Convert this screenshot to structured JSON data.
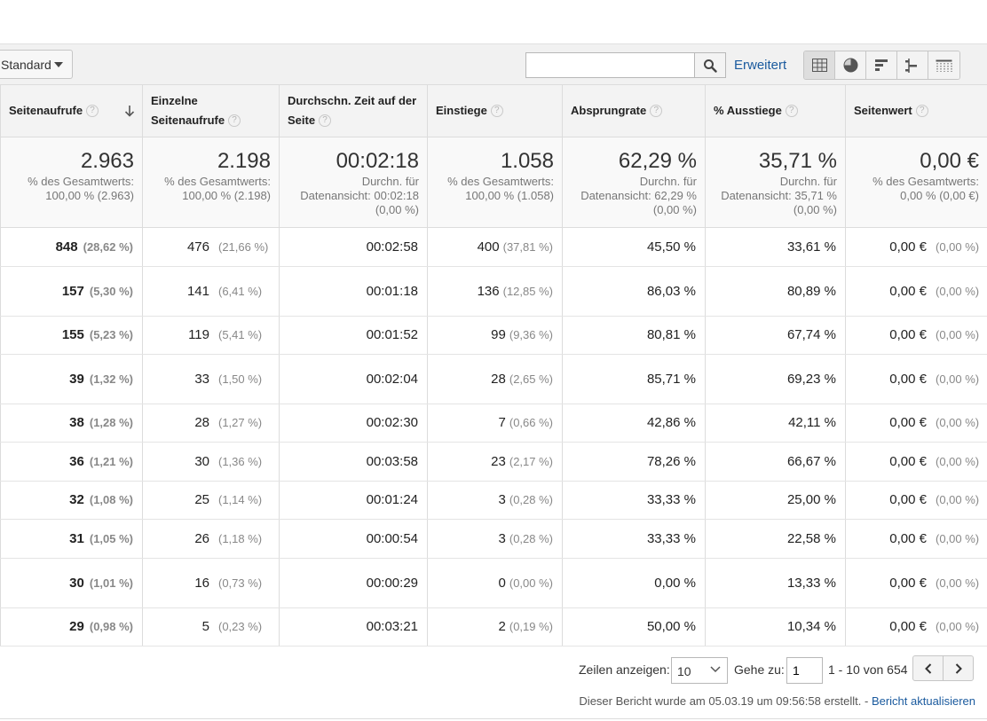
{
  "toolbar": {
    "view_select": "Standard",
    "search_value": "",
    "advanced_label": "Erweitert",
    "viz_icons": [
      "table-icon",
      "pie-chart-icon",
      "performance-bar-icon",
      "comparison-icon",
      "pivot-icon"
    ]
  },
  "columns": [
    {
      "label": "Seitenaufrufe",
      "help": "?"
    },
    {
      "label": "Einzelne Seitenaufrufe",
      "help": "?"
    },
    {
      "label": "Durchschn. Zeit auf der Seite",
      "help": "?"
    },
    {
      "label": "Einstiege",
      "help": "?"
    },
    {
      "label": "Absprungrate",
      "help": "?"
    },
    {
      "label": "% Ausstiege",
      "help": "?"
    },
    {
      "label": "Seitenwert",
      "help": "?"
    }
  ],
  "summary": [
    {
      "value": "2.963",
      "sub1": "% des Gesamtwerts:",
      "sub2": "100,00 % (2.963)",
      "sub3": ""
    },
    {
      "value": "2.198",
      "sub1": "% des Gesamtwerts:",
      "sub2": "100,00 % (2.198)",
      "sub3": ""
    },
    {
      "value": "00:02:18",
      "sub1": "Durchn. für",
      "sub2": "Datenansicht: 00:02:18",
      "sub3": "(0,00 %)"
    },
    {
      "value": "1.058",
      "sub1": "% des Gesamtwerts:",
      "sub2": "100,00 % (1.058)",
      "sub3": ""
    },
    {
      "value": "62,29 %",
      "sub1": "Durchn. für",
      "sub2": "Datenansicht: 62,29 %",
      "sub3": "(0,00 %)"
    },
    {
      "value": "35,71 %",
      "sub1": "Durchn. für",
      "sub2": "Datenansicht: 35,71 %",
      "sub3": "(0,00 %)"
    },
    {
      "value": "0,00 €",
      "sub1": "% des Gesamtwerts:",
      "sub2": "0,00 % (0,00 €)",
      "sub3": ""
    }
  ],
  "rows": [
    {
      "pv": "848",
      "pv_pct": "(28,62 %)",
      "upv": "476",
      "upv_pct": "(21,66 %)",
      "time": "00:02:58",
      "ent": "400",
      "ent_pct": "(37,81 %)",
      "bounce": "45,50 %",
      "exit": "33,61 %",
      "value": "0,00 €",
      "value_pct": "(0,00 %)"
    },
    {
      "pv": "157",
      "pv_pct": "(5,30 %)",
      "upv": "141",
      "upv_pct": "(6,41 %)",
      "time": "00:01:18",
      "ent": "136",
      "ent_pct": "(12,85 %)",
      "bounce": "86,03 %",
      "exit": "80,89 %",
      "value": "0,00 €",
      "value_pct": "(0,00 %)"
    },
    {
      "pv": "155",
      "pv_pct": "(5,23 %)",
      "upv": "119",
      "upv_pct": "(5,41 %)",
      "time": "00:01:52",
      "ent": "99",
      "ent_pct": "(9,36 %)",
      "bounce": "80,81 %",
      "exit": "67,74 %",
      "value": "0,00 €",
      "value_pct": "(0,00 %)"
    },
    {
      "pv": "39",
      "pv_pct": "(1,32 %)",
      "upv": "33",
      "upv_pct": "(1,50 %)",
      "time": "00:02:04",
      "ent": "28",
      "ent_pct": "(2,65 %)",
      "bounce": "85,71 %",
      "exit": "69,23 %",
      "value": "0,00 €",
      "value_pct": "(0,00 %)"
    },
    {
      "pv": "38",
      "pv_pct": "(1,28 %)",
      "upv": "28",
      "upv_pct": "(1,27 %)",
      "time": "00:02:30",
      "ent": "7",
      "ent_pct": "(0,66 %)",
      "bounce": "42,86 %",
      "exit": "42,11 %",
      "value": "0,00 €",
      "value_pct": "(0,00 %)"
    },
    {
      "pv": "36",
      "pv_pct": "(1,21 %)",
      "upv": "30",
      "upv_pct": "(1,36 %)",
      "time": "00:03:58",
      "ent": "23",
      "ent_pct": "(2,17 %)",
      "bounce": "78,26 %",
      "exit": "66,67 %",
      "value": "0,00 €",
      "value_pct": "(0,00 %)"
    },
    {
      "pv": "32",
      "pv_pct": "(1,08 %)",
      "upv": "25",
      "upv_pct": "(1,14 %)",
      "time": "00:01:24",
      "ent": "3",
      "ent_pct": "(0,28 %)",
      "bounce": "33,33 %",
      "exit": "25,00 %",
      "value": "0,00 €",
      "value_pct": "(0,00 %)"
    },
    {
      "pv": "31",
      "pv_pct": "(1,05 %)",
      "upv": "26",
      "upv_pct": "(1,18 %)",
      "time": "00:00:54",
      "ent": "3",
      "ent_pct": "(0,28 %)",
      "bounce": "33,33 %",
      "exit": "22,58 %",
      "value": "0,00 €",
      "value_pct": "(0,00 %)"
    },
    {
      "pv": "30",
      "pv_pct": "(1,01 %)",
      "upv": "16",
      "upv_pct": "(0,73 %)",
      "time": "00:00:29",
      "ent": "0",
      "ent_pct": "(0,00 %)",
      "bounce": "0,00 %",
      "exit": "13,33 %",
      "value": "0,00 €",
      "value_pct": "(0,00 %)"
    },
    {
      "pv": "29",
      "pv_pct": "(0,98 %)",
      "upv": "5",
      "upv_pct": "(0,23 %)",
      "time": "00:03:21",
      "ent": "2",
      "ent_pct": "(0,19 %)",
      "bounce": "50,00 %",
      "exit": "10,34 %",
      "value": "0,00 €",
      "value_pct": "(0,00 %)"
    }
  ],
  "pager": {
    "rows_label": "Zeilen anzeigen:",
    "rows_value": "10",
    "goto_label": "Gehe zu:",
    "goto_value": "1",
    "range": "1 - 10 von 654"
  },
  "footer": {
    "note": "Dieser Bericht wurde am 05.03.19 um 09:56:58 erstellt. -",
    "refresh_link": "Bericht aktualisieren"
  }
}
